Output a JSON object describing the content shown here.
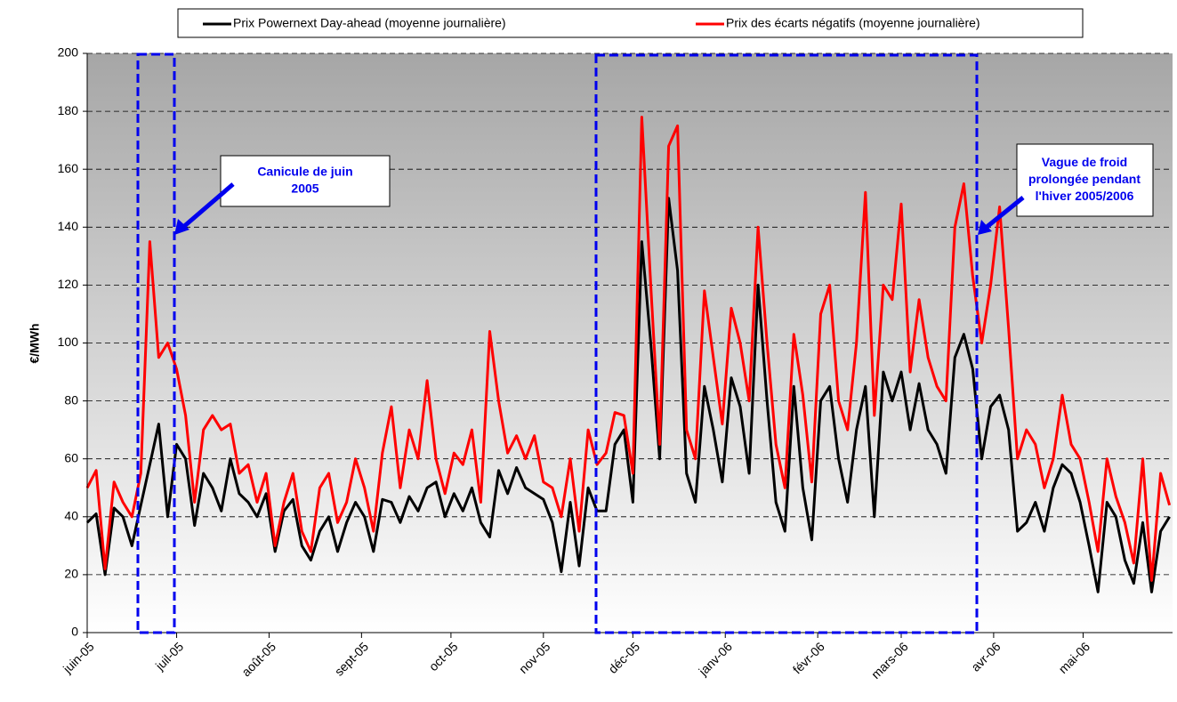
{
  "chart_data": {
    "type": "line",
    "ylabel": "€/MWh",
    "x": [
      0,
      3,
      6,
      9,
      12,
      15,
      18,
      21,
      24,
      27,
      30,
      33,
      36,
      39,
      42,
      45,
      48,
      51,
      54,
      57,
      60,
      63,
      66,
      69,
      72,
      75,
      78,
      81,
      84,
      87,
      90,
      93,
      96,
      99,
      102,
      105,
      108,
      111,
      114,
      117,
      120,
      123,
      126,
      129,
      132,
      135,
      138,
      141,
      144,
      147,
      150,
      153,
      156,
      159,
      162,
      165,
      168,
      171,
      174,
      177,
      180,
      183,
      186,
      189,
      192,
      195,
      198,
      201,
      204,
      207,
      210,
      213,
      216,
      219,
      222,
      225,
      228,
      231,
      234,
      237,
      240,
      243,
      246,
      249,
      252,
      255,
      258,
      261,
      264,
      267,
      270,
      273,
      276,
      279,
      282,
      285,
      288,
      291,
      294,
      297,
      300,
      303,
      306,
      309,
      312,
      315,
      318,
      321,
      324,
      327,
      330,
      333,
      336,
      339,
      342,
      345,
      348,
      351,
      354,
      357,
      360,
      363
    ],
    "xlim": [
      0,
      364
    ],
    "xticks": [
      {
        "value": 0,
        "label": "juin-05"
      },
      {
        "value": 30,
        "label": "juil-05"
      },
      {
        "value": 61,
        "label": "août-05"
      },
      {
        "value": 92,
        "label": "sept-05"
      },
      {
        "value": 122,
        "label": "oct-05"
      },
      {
        "value": 153,
        "label": "nov-05"
      },
      {
        "value": 183,
        "label": "déc-05"
      },
      {
        "value": 214,
        "label": "janv-06"
      },
      {
        "value": 245,
        "label": "févr-06"
      },
      {
        "value": 273,
        "label": "mars-06"
      },
      {
        "value": 304,
        "label": "avr-06"
      },
      {
        "value": 334,
        "label": "mai-06"
      }
    ],
    "ylim": [
      0,
      200
    ],
    "yticks": [
      0,
      20,
      40,
      60,
      80,
      100,
      120,
      140,
      160,
      180,
      200
    ],
    "grid": true,
    "series": [
      {
        "name": "Prix Powernext Day-ahead (moyenne journalière)",
        "color": "#000000",
        "values": [
          38,
          41,
          20,
          43,
          40,
          30,
          44,
          58,
          72,
          40,
          65,
          60,
          37,
          55,
          50,
          42,
          60,
          48,
          45,
          40,
          48,
          28,
          42,
          46,
          30,
          25,
          35,
          40,
          28,
          38,
          45,
          40,
          28,
          46,
          45,
          38,
          47,
          42,
          50,
          52,
          40,
          48,
          42,
          50,
          38,
          33,
          56,
          48,
          57,
          50,
          48,
          46,
          38,
          21,
          45,
          23,
          50,
          42,
          42,
          65,
          70,
          45,
          135,
          100,
          60,
          150,
          125,
          55,
          45,
          85,
          70,
          52,
          88,
          78,
          55,
          120,
          80,
          45,
          35,
          85,
          50,
          32,
          80,
          85,
          60,
          45,
          70,
          85,
          40,
          90,
          80,
          90,
          70,
          86,
          70,
          65,
          55,
          95,
          103,
          91,
          60,
          78,
          82,
          70,
          35,
          38,
          45,
          35,
          50,
          58,
          55,
          45,
          30,
          14,
          45,
          40,
          25,
          17,
          38,
          14,
          35,
          40
        ]
      },
      {
        "name": "Prix des écarts négatifs (moyenne journalière)",
        "color": "#ff0000",
        "values": [
          50,
          56,
          22,
          52,
          45,
          40,
          55,
          135,
          95,
          100,
          91,
          75,
          45,
          70,
          75,
          70,
          72,
          55,
          58,
          45,
          55,
          30,
          45,
          55,
          35,
          28,
          50,
          55,
          38,
          45,
          60,
          50,
          35,
          62,
          78,
          50,
          70,
          60,
          87,
          60,
          48,
          62,
          58,
          70,
          45,
          104,
          80,
          62,
          68,
          60,
          68,
          52,
          50,
          40,
          60,
          35,
          70,
          58,
          62,
          76,
          75,
          55,
          178,
          120,
          65,
          168,
          175,
          70,
          60,
          118,
          95,
          72,
          112,
          100,
          80,
          140,
          100,
          65,
          50,
          103,
          82,
          52,
          110,
          120,
          80,
          70,
          100,
          152,
          75,
          120,
          115,
          148,
          90,
          115,
          95,
          85,
          80,
          140,
          155,
          123,
          100,
          120,
          147,
          105,
          60,
          70,
          65,
          50,
          60,
          82,
          65,
          60,
          45,
          28,
          60,
          47,
          38,
          24,
          60,
          18,
          55,
          44
        ]
      }
    ],
    "annotations": [
      {
        "lines": [
          "Canicule de juin",
          "2005"
        ]
      },
      {
        "lines": [
          "Vague de froid",
          "prolongée pendant",
          "l'hiver 2005/2006"
        ]
      }
    ]
  }
}
